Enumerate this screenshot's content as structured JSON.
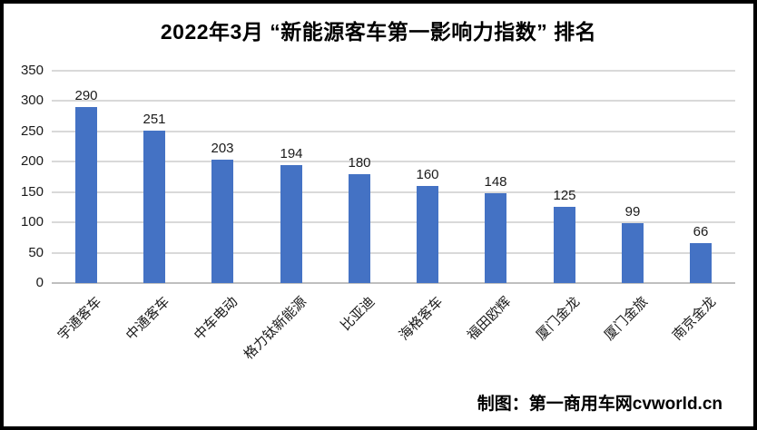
{
  "page": {
    "title": "2022年3月 “新能源客车第一影响力指数” 排名",
    "footer_credit": "制图：第一商用车网cvworld.cn"
  },
  "chart_data": {
    "type": "bar",
    "title": "2022年3月 “新能源客车第一影响力指数” 排名",
    "categories": [
      "宇通客车",
      "中通客车",
      "中车电动",
      "格力钛新能源",
      "比亚迪",
      "海格客车",
      "福田欧辉",
      "厦门金龙",
      "厦门金旅",
      "南京金龙"
    ],
    "values": [
      290,
      251,
      203,
      194,
      180,
      160,
      148,
      125,
      99,
      66
    ],
    "xlabel": "",
    "ylabel": "",
    "ylim": [
      0,
      350
    ],
    "ytick_interval": 50,
    "yticks": [
      0,
      50,
      100,
      150,
      200,
      250,
      300,
      350
    ],
    "grid": true,
    "legend": "none",
    "bar_color": "#4472C4",
    "gridline_color": "#D9D9D9",
    "axis_line_color": "#BFBFBF",
    "label_color": "#1a1a1a",
    "data_labels": true,
    "category_label_rotation_deg": -45
  }
}
